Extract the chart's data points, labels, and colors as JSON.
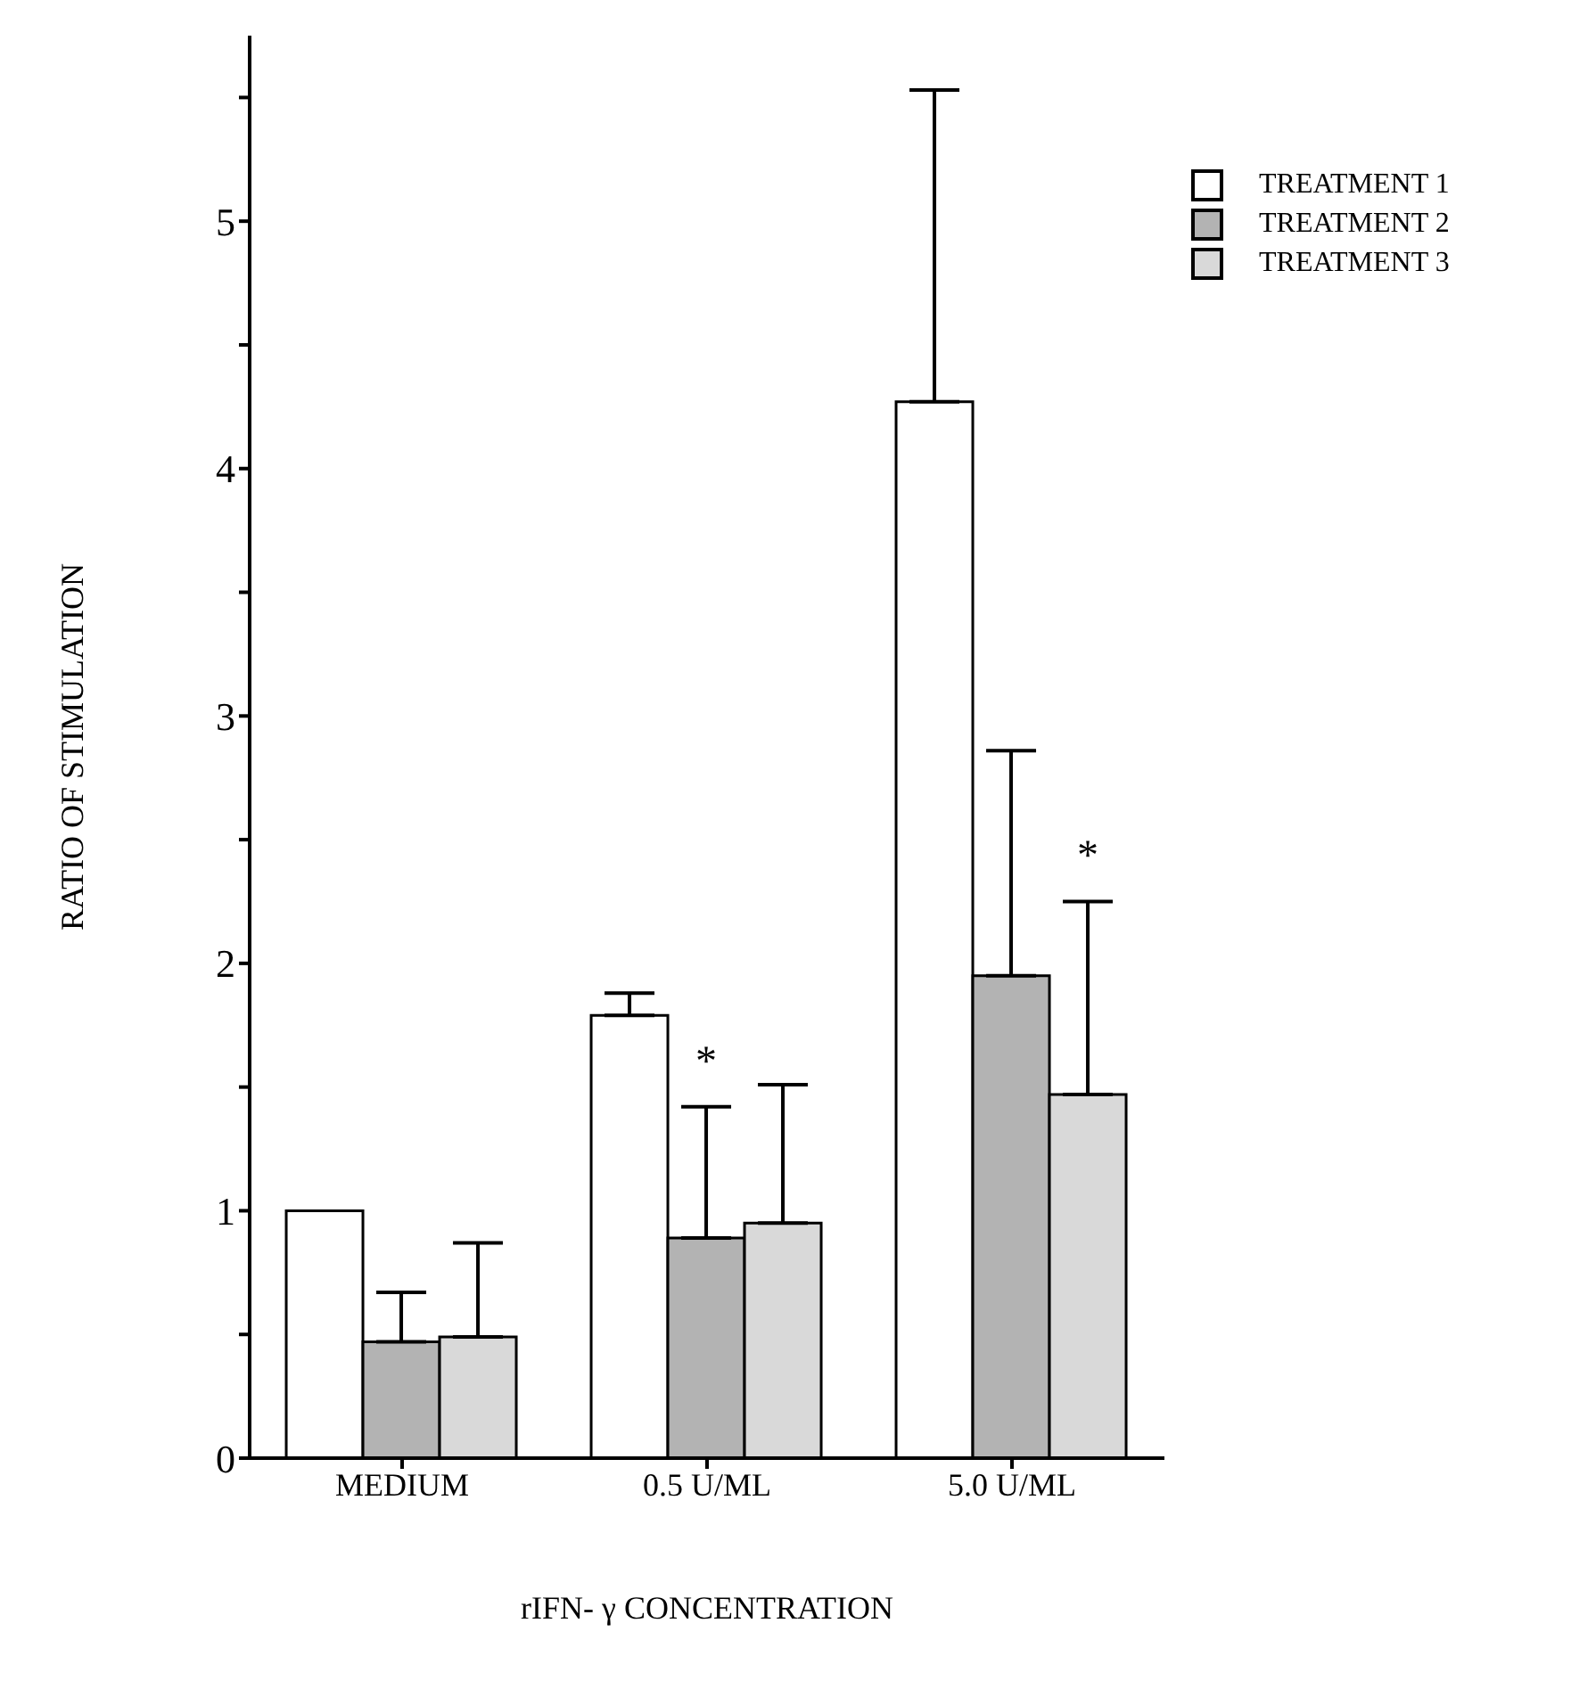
{
  "chart_data": {
    "type": "bar",
    "xlabel": "rIFN- γ CONCENTRATION",
    "ylabel": "RATIO OF STIMULATION",
    "categories": [
      "MEDIUM",
      "0.5 U/ML",
      "5.0 U/ML"
    ],
    "series": [
      {
        "name": "TREATMENT 1",
        "color": "#ffffff",
        "values": [
          1.0,
          1.79,
          4.27
        ],
        "errors": [
          null,
          [
            1.79,
            1.88
          ],
          [
            4.27,
            5.53
          ]
        ]
      },
      {
        "name": "TREATMENT 2",
        "color": "#b3b3b3",
        "values": [
          0.47,
          0.89,
          1.95
        ],
        "errors": [
          [
            0.47,
            0.67
          ],
          [
            0.89,
            1.42
          ],
          [
            1.95,
            2.86
          ]
        ]
      },
      {
        "name": "TREATMENT 3",
        "color": "#d9d9d9",
        "values": [
          0.49,
          0.95,
          1.47
        ],
        "errors": [
          [
            0.49,
            0.87
          ],
          [
            0.95,
            1.51
          ],
          [
            1.47,
            2.25
          ]
        ]
      }
    ],
    "ylim": [
      0,
      5.75
    ],
    "yticks": [
      0,
      {
        "value": 0.5,
        "label": null
      },
      1,
      {
        "value": 1.5,
        "label": null
      },
      2,
      {
        "value": 2.5,
        "label": null
      },
      3,
      {
        "value": 3.5,
        "label": null
      },
      4,
      {
        "value": 4.5,
        "label": null
      },
      5,
      {
        "value": 5.5,
        "label": null
      }
    ],
    "annotations": [
      {
        "text": "*",
        "x": "0.5 U/ML",
        "y": 1.42
      },
      {
        "text": "*",
        "x": "5.0 U/ML",
        "y": 2.25
      }
    ],
    "grid": false,
    "legend": "top right"
  }
}
